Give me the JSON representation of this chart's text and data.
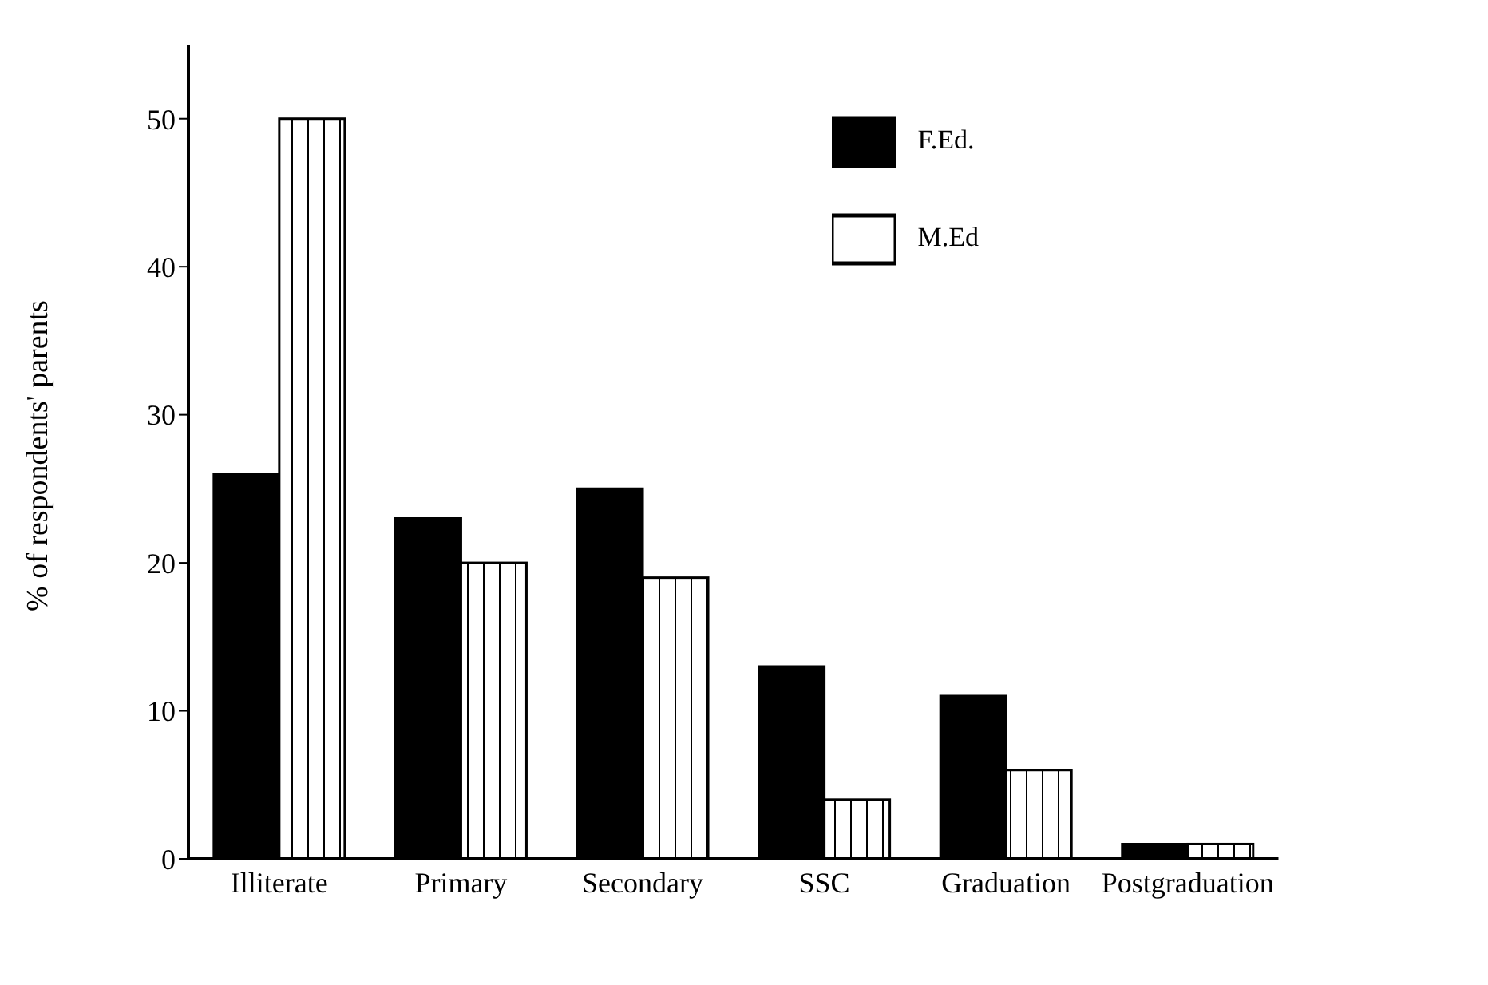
{
  "chart_data": {
    "type": "bar",
    "ylabel": "% of respondents' parents",
    "categories": [
      "Illiterate",
      "Primary",
      "Secondary",
      "SSC",
      "Graduation",
      "Postgraduation"
    ],
    "series": [
      {
        "name": "F.Ed.",
        "color": "#000000",
        "values": [
          26,
          23,
          25,
          13,
          11,
          1
        ]
      },
      {
        "name": "M.Ed",
        "color": "#ffffff",
        "values": [
          50,
          20,
          19,
          4,
          6,
          1
        ]
      }
    ],
    "ylim": [
      0,
      55
    ],
    "yticks": [
      0,
      10,
      20,
      30,
      40,
      50
    ],
    "grid": false,
    "legend": "top right"
  }
}
